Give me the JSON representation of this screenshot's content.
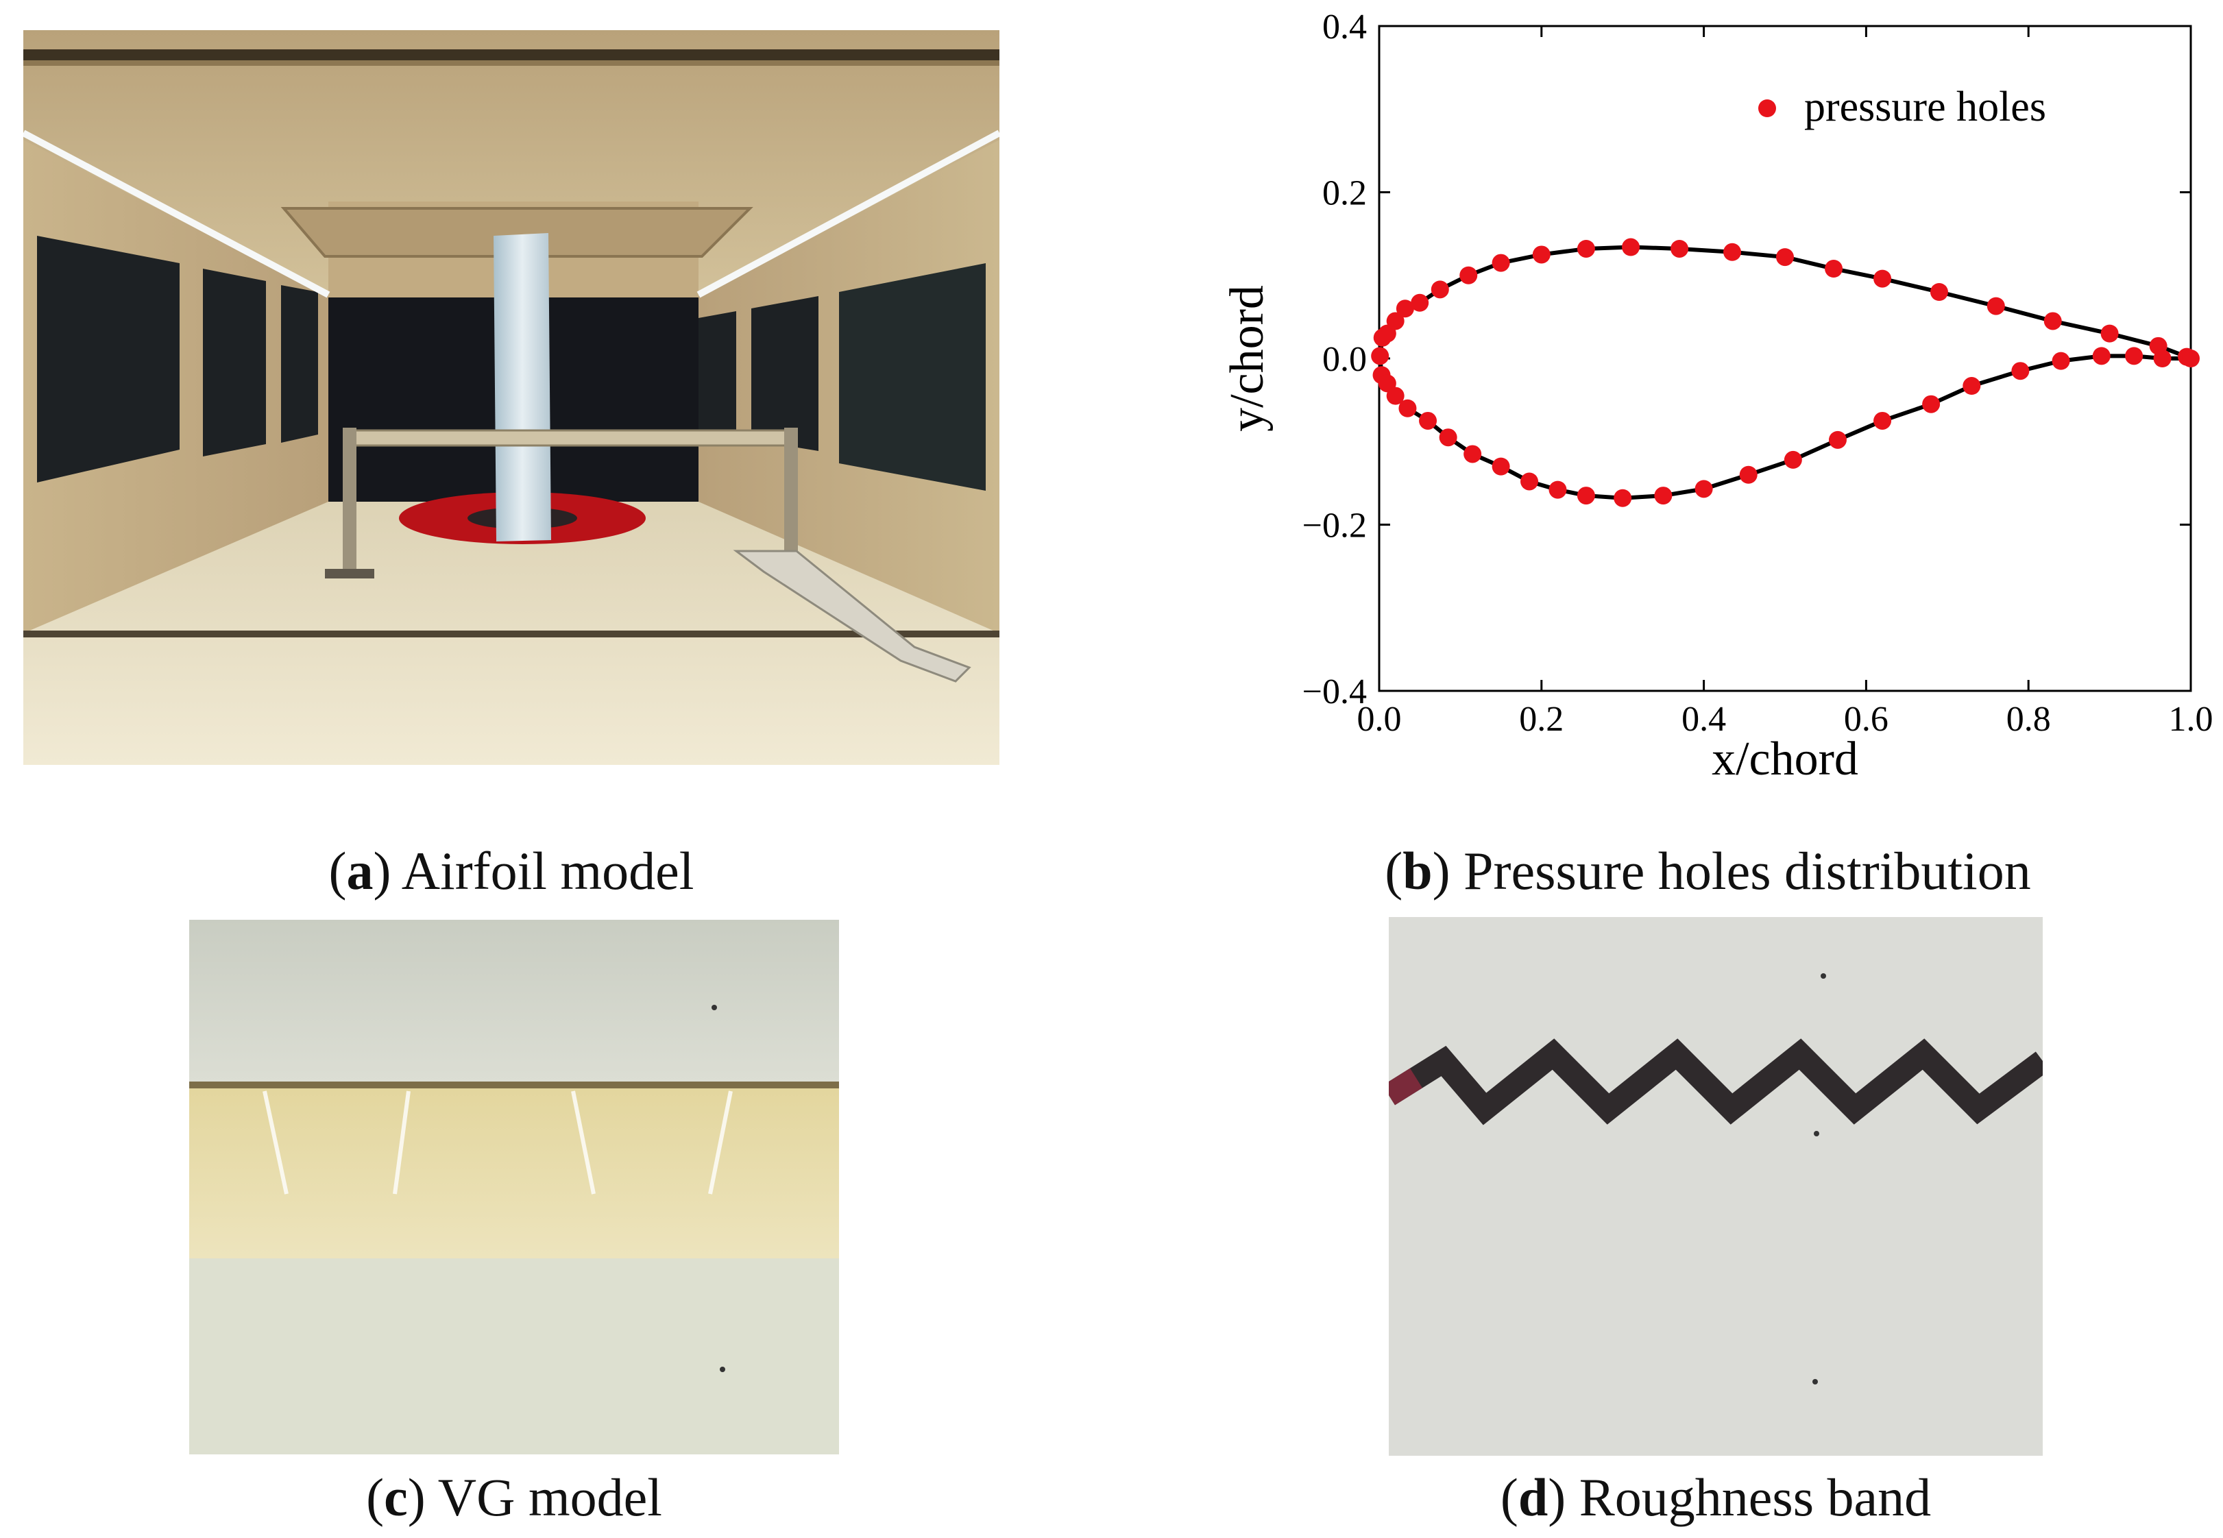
{
  "captions": {
    "a": {
      "letter": "a",
      "text": "Airfoil model"
    },
    "b": {
      "letter": "b",
      "text": "Pressure holes distribution"
    },
    "c": {
      "letter": "c",
      "text": "VG model"
    },
    "d": {
      "letter": "d",
      "text": "Roughness band"
    }
  },
  "colors": {
    "points": "#e8131b",
    "curve": "#000000",
    "wall": "#c8b48c",
    "floor": "#ece4cc",
    "vg_band": "#e6dfae",
    "roughness": "#3a2a2e"
  },
  "chart_data": {
    "type": "scatter",
    "xlabel": "x/chord",
    "ylabel": "y/chord",
    "xlim": [
      0.0,
      1.0
    ],
    "ylim": [
      -0.4,
      0.4
    ],
    "xticks": [
      "0.0",
      "0.2",
      "0.4",
      "0.6",
      "0.8",
      "1.0"
    ],
    "yticks": [
      "0.4",
      "0.2",
      "0.0",
      "−0.2",
      "−0.4"
    ],
    "grid": false,
    "legend_position": "top-right",
    "series": [
      {
        "name": "pressure holes",
        "marker": "circle",
        "points": [
          [
            0.001,
            0.003
          ],
          [
            0.004,
            0.025
          ],
          [
            0.01,
            0.03
          ],
          [
            0.02,
            0.045
          ],
          [
            0.032,
            0.06
          ],
          [
            0.05,
            0.067
          ],
          [
            0.075,
            0.083
          ],
          [
            0.11,
            0.1
          ],
          [
            0.15,
            0.115
          ],
          [
            0.2,
            0.125
          ],
          [
            0.255,
            0.132
          ],
          [
            0.31,
            0.134
          ],
          [
            0.37,
            0.132
          ],
          [
            0.435,
            0.128
          ],
          [
            0.5,
            0.122
          ],
          [
            0.56,
            0.108
          ],
          [
            0.62,
            0.096
          ],
          [
            0.69,
            0.08
          ],
          [
            0.76,
            0.063
          ],
          [
            0.83,
            0.045
          ],
          [
            0.9,
            0.03
          ],
          [
            0.96,
            0.015
          ],
          [
            0.995,
            0.002
          ],
          [
            0.003,
            -0.02
          ],
          [
            0.01,
            -0.03
          ],
          [
            0.02,
            -0.045
          ],
          [
            0.035,
            -0.06
          ],
          [
            0.06,
            -0.075
          ],
          [
            0.085,
            -0.095
          ],
          [
            0.115,
            -0.115
          ],
          [
            0.15,
            -0.13
          ],
          [
            0.185,
            -0.148
          ],
          [
            0.22,
            -0.158
          ],
          [
            0.255,
            -0.165
          ],
          [
            0.3,
            -0.168
          ],
          [
            0.35,
            -0.165
          ],
          [
            0.4,
            -0.157
          ],
          [
            0.455,
            -0.14
          ],
          [
            0.51,
            -0.122
          ],
          [
            0.565,
            -0.098
          ],
          [
            0.62,
            -0.075
          ],
          [
            0.68,
            -0.055
          ],
          [
            0.73,
            -0.033
          ],
          [
            0.79,
            -0.015
          ],
          [
            0.84,
            -0.003
          ],
          [
            0.89,
            0.003
          ],
          [
            0.93,
            0.003
          ],
          [
            0.965,
            0.0
          ],
          [
            1.0,
            0.0
          ]
        ]
      }
    ]
  }
}
